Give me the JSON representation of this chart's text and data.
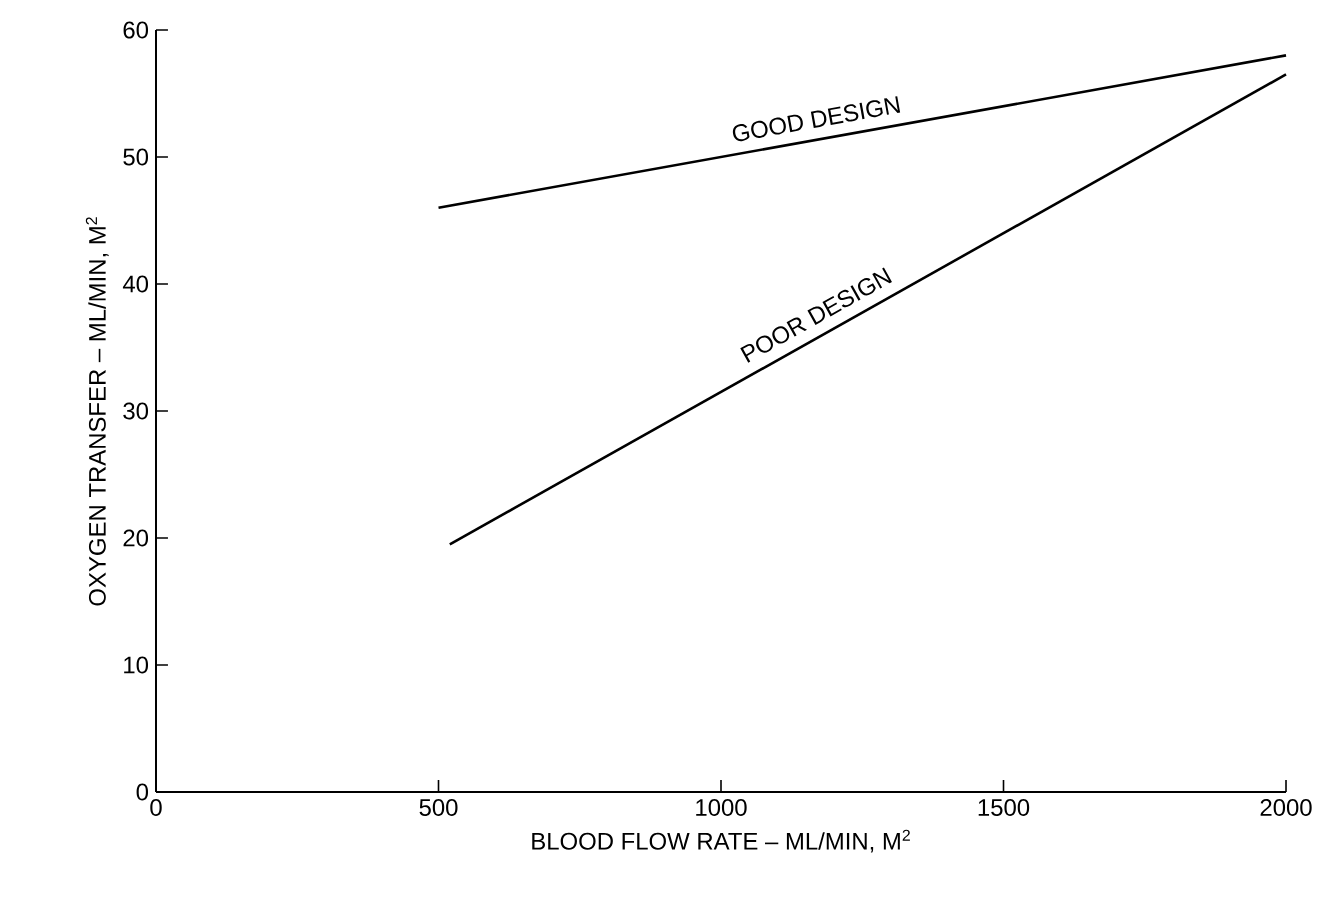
{
  "chart_data": {
    "type": "line",
    "xlabel": "BLOOD FLOW RATE – ML/MIN, M$^{2}$",
    "ylabel": "OXYGEN TRANSFER – ML/MIN, M$^{2}$",
    "series": [
      {
        "name": "GOOD DESIGN",
        "color": "#000000",
        "x": [
          500,
          2000
        ],
        "values": [
          46,
          58
        ]
      },
      {
        "name": "POOR DESIGN",
        "color": "#000000",
        "x": [
          520,
          2000
        ],
        "values": [
          19.5,
          56.5
        ]
      }
    ],
    "xlim": [
      0,
      2000
    ],
    "xticks": [
      0,
      500,
      1000,
      1500,
      2000
    ],
    "ylim": [
      0,
      60
    ],
    "yticks": [
      0,
      10,
      20,
      30,
      40,
      50,
      60
    ],
    "grid": false,
    "legend": false,
    "marker": "none",
    "line_style": "solid"
  }
}
